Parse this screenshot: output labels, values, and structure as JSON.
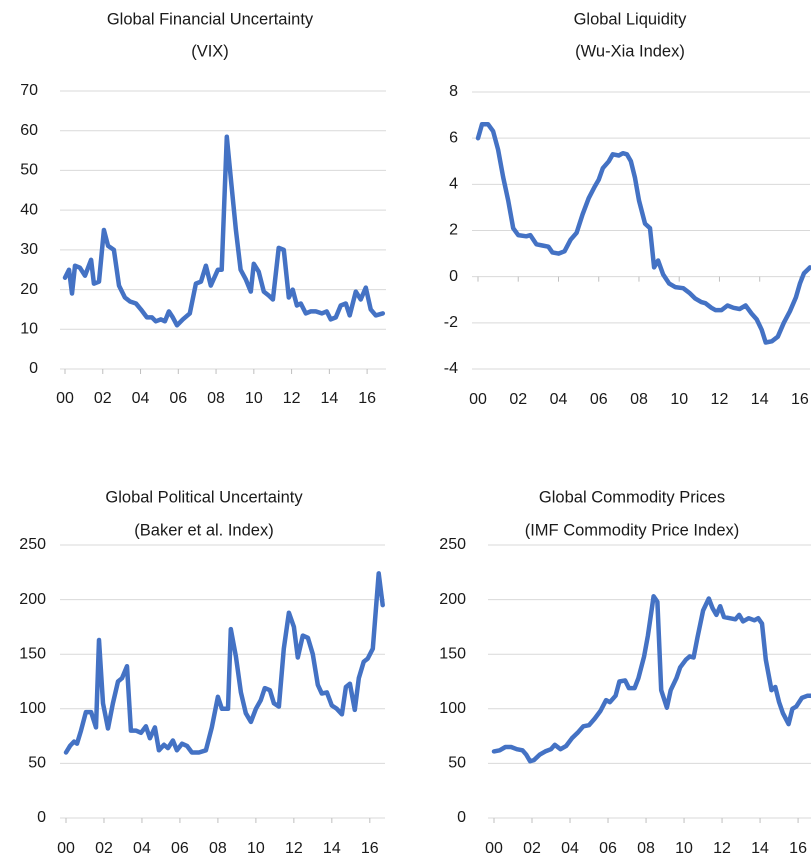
{
  "chart_data": [
    {
      "type": "line",
      "title": "Global Financial Uncertainty",
      "subtitle": "(VIX)",
      "color": "#4472c4",
      "grid": true,
      "xlim": [
        0,
        17
      ],
      "ylim": [
        0,
        70
      ],
      "xticks": [
        {
          "value": 0,
          "label": "00"
        },
        {
          "value": 2,
          "label": "02"
        },
        {
          "value": 4,
          "label": "04"
        },
        {
          "value": 6,
          "label": "06"
        },
        {
          "value": 8,
          "label": "08"
        },
        10,
        12,
        14,
        16
      ],
      "yticks": [
        0,
        10,
        20,
        30,
        40,
        50,
        60,
        70
      ],
      "x": [
        0,
        0.21,
        0.37,
        0.53,
        0.79,
        1.06,
        1.38,
        1.53,
        1.8,
        2.06,
        2.28,
        2.59,
        2.86,
        3.17,
        3.44,
        3.76,
        4.02,
        4.34,
        4.6,
        4.81,
        5.08,
        5.29,
        5.5,
        5.71,
        5.93,
        6.24,
        6.61,
        6.93,
        7.2,
        7.46,
        7.72,
        8.1,
        8.3,
        8.57,
        8.8,
        9.05,
        9.3,
        9.58,
        9.84,
        10.0,
        10.26,
        10.53,
        10.79,
        11.01,
        11.32,
        11.59,
        11.85,
        12.06,
        12.28,
        12.49,
        12.75,
        13.02,
        13.28,
        13.6,
        13.86,
        14.07,
        14.34,
        14.6,
        14.87,
        15.08,
        15.4,
        15.66,
        15.93,
        16.19,
        16.46,
        16.83
      ],
      "values": [
        23,
        25,
        19,
        26,
        25.5,
        23.5,
        27.5,
        21.5,
        22,
        35,
        31,
        30,
        21,
        18,
        17,
        16.5,
        15,
        13,
        13,
        12,
        12.5,
        12,
        14.5,
        13,
        11,
        12.5,
        14,
        21.5,
        22,
        26,
        21,
        25,
        25,
        58.5,
        47,
        35,
        25,
        22.5,
        19.5,
        26.5,
        24.5,
        19.5,
        18.5,
        17.5,
        30.5,
        30,
        18,
        20,
        16,
        16.5,
        14,
        14.5,
        14.5,
        14,
        14.5,
        12.5,
        13,
        16,
        16.5,
        13.5,
        19.5,
        17.5,
        20.5,
        15,
        13.5,
        14
      ]
    },
    {
      "type": "line",
      "title": "Global Liquidity",
      "subtitle": "(Wu-Xia Index)",
      "color": "#4472c4",
      "grid": true,
      "xlim": [
        0,
        16.5
      ],
      "ylim": [
        -4,
        8
      ],
      "xticks": [
        {
          "value": 0,
          "label": "00"
        },
        {
          "value": 2,
          "label": "02"
        },
        {
          "value": 4,
          "label": "04"
        },
        {
          "value": 6,
          "label": "06"
        },
        {
          "value": 8,
          "label": "08"
        },
        10,
        12,
        14,
        16
      ],
      "yticks": [
        -4,
        -2,
        0,
        2,
        4,
        6,
        8
      ],
      "x": [
        0,
        0.2,
        0.5,
        0.75,
        1.0,
        1.25,
        1.5,
        1.75,
        2.0,
        2.4,
        2.6,
        2.9,
        3.2,
        3.5,
        3.7,
        4.0,
        4.3,
        4.6,
        4.9,
        5.2,
        5.5,
        5.8,
        6.0,
        6.2,
        6.5,
        6.7,
        7.0,
        7.2,
        7.4,
        7.6,
        7.8,
        8.0,
        8.3,
        8.55,
        8.75,
        8.95,
        9.2,
        9.5,
        9.8,
        10.2,
        10.5,
        10.8,
        11.1,
        11.3,
        11.6,
        11.8,
        12.1,
        12.4,
        12.7,
        13.0,
        13.3,
        13.6,
        13.85,
        14.1,
        14.3,
        14.6,
        14.9,
        15.2,
        15.5,
        15.8,
        16.0,
        16.2,
        16.5
      ],
      "values": [
        6.0,
        6.6,
        6.6,
        6.3,
        5.5,
        4.3,
        3.3,
        2.1,
        1.8,
        1.75,
        1.8,
        1.4,
        1.35,
        1.3,
        1.05,
        1.0,
        1.1,
        1.6,
        1.9,
        2.7,
        3.4,
        3.9,
        4.2,
        4.7,
        5.0,
        5.3,
        5.25,
        5.35,
        5.3,
        5.0,
        4.3,
        3.3,
        2.3,
        2.1,
        0.4,
        0.7,
        0.1,
        -0.3,
        -0.45,
        -0.5,
        -0.7,
        -0.95,
        -1.1,
        -1.15,
        -1.35,
        -1.45,
        -1.45,
        -1.25,
        -1.35,
        -1.4,
        -1.25,
        -1.6,
        -1.85,
        -2.3,
        -2.85,
        -2.8,
        -2.6,
        -2.0,
        -1.5,
        -0.9,
        -0.3,
        0.15,
        0.4
      ]
    },
    {
      "type": "line",
      "title": "Global Political Uncertainty",
      "subtitle": "(Baker et al. Index)",
      "color": "#4472c4",
      "grid": true,
      "xlim": [
        0,
        16.8
      ],
      "ylim": [
        0,
        250
      ],
      "xticks": [
        {
          "value": 0,
          "label": "00"
        },
        {
          "value": 2,
          "label": "02"
        },
        {
          "value": 4,
          "label": "04"
        },
        {
          "value": 6,
          "label": "06"
        },
        {
          "value": 8,
          "label": "08"
        },
        10,
        12,
        14,
        16
      ],
      "yticks": [
        0,
        50,
        100,
        150,
        200,
        250
      ],
      "x": [
        0,
        0.21,
        0.42,
        0.58,
        0.79,
        1.05,
        1.32,
        1.58,
        1.74,
        1.95,
        2.21,
        2.47,
        2.74,
        2.95,
        3.21,
        3.42,
        3.68,
        3.95,
        4.21,
        4.42,
        4.68,
        4.89,
        5.16,
        5.37,
        5.63,
        5.84,
        6.11,
        6.37,
        6.63,
        7.0,
        7.37,
        7.68,
        8.0,
        8.21,
        8.53,
        8.68,
        8.95,
        9.21,
        9.47,
        9.74,
        10.0,
        10.26,
        10.47,
        10.74,
        10.95,
        11.21,
        11.47,
        11.74,
        12.0,
        12.21,
        12.47,
        12.74,
        13.0,
        13.26,
        13.47,
        13.74,
        14.0,
        14.26,
        14.53,
        14.74,
        14.95,
        15.21,
        15.42,
        15.68,
        15.89,
        16.16,
        16.47,
        16.68
      ],
      "values": [
        60,
        66,
        70,
        68,
        80,
        97,
        97,
        83,
        163,
        105,
        82,
        105,
        125,
        128,
        139,
        80,
        80,
        78,
        84,
        73,
        83,
        62,
        67,
        64,
        71,
        62,
        68,
        66,
        60,
        60,
        62,
        83,
        111,
        100,
        100,
        173,
        148,
        115,
        96,
        88,
        100,
        108,
        119,
        117,
        105,
        102,
        155,
        188,
        175,
        147,
        167,
        165,
        150,
        122,
        114,
        115,
        103,
        100,
        95,
        120,
        123,
        99,
        128,
        143,
        146,
        155,
        224,
        195
      ]
    },
    {
      "type": "line",
      "title": "Global Commodity Prices",
      "subtitle": "(IMF Commodity Price Index)",
      "color": "#4472c4",
      "grid": true,
      "xlim": [
        0,
        16.68
      ],
      "ylim": [
        0,
        250
      ],
      "xticks": [
        {
          "value": 0,
          "label": "00"
        },
        {
          "value": 2,
          "label": "02"
        },
        {
          "value": 4,
          "label": "04"
        },
        {
          "value": 6,
          "label": "06"
        },
        {
          "value": 8,
          "label": "08"
        },
        10,
        12,
        14,
        16
      ],
      "yticks": [
        0,
        50,
        100,
        150,
        200,
        250
      ],
      "x": [
        0,
        0.3,
        0.6,
        0.9,
        1.2,
        1.5,
        1.7,
        1.9,
        2.1,
        2.4,
        2.7,
        3.0,
        3.2,
        3.5,
        3.8,
        4.1,
        4.4,
        4.7,
        5.0,
        5.3,
        5.6,
        5.9,
        6.1,
        6.4,
        6.6,
        6.9,
        7.1,
        7.4,
        7.6,
        7.9,
        8.1,
        8.4,
        8.6,
        8.8,
        9.1,
        9.3,
        9.6,
        9.8,
        10.1,
        10.3,
        10.5,
        10.7,
        11.0,
        11.3,
        11.5,
        11.7,
        11.9,
        12.1,
        12.4,
        12.7,
        12.9,
        13.1,
        13.4,
        13.7,
        13.9,
        14.1,
        14.3,
        14.6,
        14.8,
        15.0,
        15.2,
        15.5,
        15.7,
        15.9,
        16.2,
        16.5,
        16.68
      ],
      "values": [
        61,
        62,
        65,
        65,
        63,
        62,
        58,
        52,
        53,
        58,
        61,
        63,
        67,
        63,
        66,
        73,
        78,
        84,
        85,
        91,
        98,
        108,
        106,
        112,
        125,
        126,
        119,
        119,
        128,
        148,
        167,
        203,
        198,
        117,
        101,
        117,
        128,
        138,
        145,
        148,
        147,
        165,
        190,
        201,
        192,
        186,
        194,
        184,
        183,
        182,
        186,
        180,
        183,
        181,
        183,
        178,
        145,
        117,
        120,
        106,
        96,
        86,
        100,
        102,
        110,
        112,
        112
      ]
    }
  ]
}
